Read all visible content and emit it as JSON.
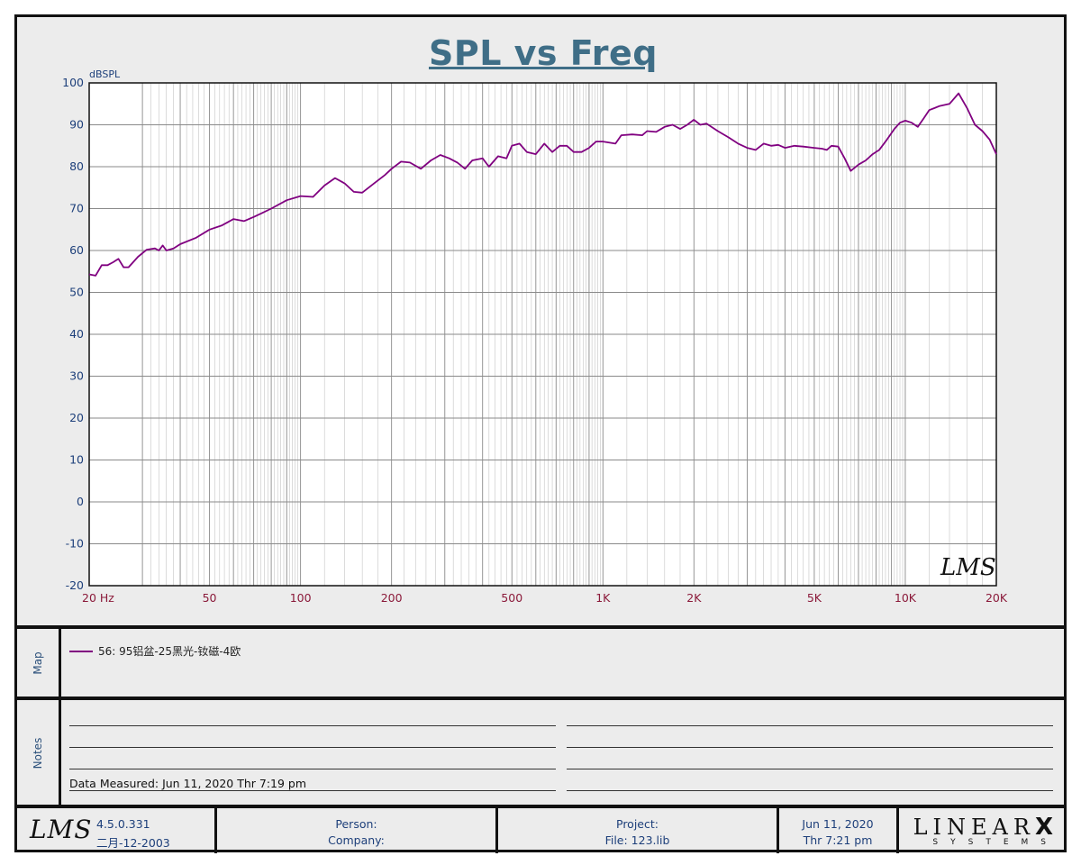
{
  "header": {
    "title": "SPL vs Freq"
  },
  "chart_data": {
    "type": "line",
    "title": "SPL vs Freq",
    "ylabel": "dBSPL",
    "xlabel": "",
    "x_scale": "log",
    "xlim": [
      20,
      20000
    ],
    "ylim": [
      -20,
      100
    ],
    "grid": true,
    "x_tick_labels": [
      {
        "value": 20,
        "label": "20  Hz"
      },
      {
        "value": 50,
        "label": "50"
      },
      {
        "value": 100,
        "label": "100"
      },
      {
        "value": 200,
        "label": "200"
      },
      {
        "value": 500,
        "label": "500"
      },
      {
        "value": 1000,
        "label": "1K"
      },
      {
        "value": 2000,
        "label": "2K"
      },
      {
        "value": 5000,
        "label": "5K"
      },
      {
        "value": 10000,
        "label": "10K"
      },
      {
        "value": 20000,
        "label": "20K"
      }
    ],
    "y_ticks": [
      100,
      90,
      80,
      70,
      60,
      50,
      40,
      30,
      20,
      10,
      0,
      -10,
      -20
    ],
    "series": [
      {
        "name": "56: 95铝盆-25黑光-钕磁-4欧",
        "color": "#800080",
        "points": [
          [
            20,
            54.3
          ],
          [
            21,
            54.0
          ],
          [
            22,
            56.5
          ],
          [
            23,
            56.5
          ],
          [
            24,
            57.2
          ],
          [
            25,
            58.0
          ],
          [
            26,
            56.0
          ],
          [
            27,
            56.0
          ],
          [
            29,
            58.5
          ],
          [
            31,
            60.2
          ],
          [
            33,
            60.5
          ],
          [
            34,
            60.0
          ],
          [
            35,
            61.2
          ],
          [
            36,
            60.0
          ],
          [
            38,
            60.5
          ],
          [
            40,
            61.5
          ],
          [
            45,
            63.0
          ],
          [
            50,
            65.0
          ],
          [
            55,
            66.0
          ],
          [
            60,
            67.5
          ],
          [
            65,
            67.0
          ],
          [
            70,
            68.0
          ],
          [
            75,
            69.0
          ],
          [
            80,
            70.0
          ],
          [
            90,
            72.0
          ],
          [
            100,
            73.0
          ],
          [
            110,
            72.8
          ],
          [
            120,
            75.5
          ],
          [
            130,
            77.3
          ],
          [
            140,
            76.0
          ],
          [
            150,
            74.0
          ],
          [
            160,
            73.8
          ],
          [
            175,
            76.0
          ],
          [
            190,
            78.0
          ],
          [
            200,
            79.5
          ],
          [
            215,
            81.2
          ],
          [
            230,
            81.0
          ],
          [
            250,
            79.5
          ],
          [
            270,
            81.5
          ],
          [
            290,
            82.8
          ],
          [
            310,
            82.0
          ],
          [
            330,
            81.0
          ],
          [
            350,
            79.5
          ],
          [
            370,
            81.5
          ],
          [
            400,
            82.0
          ],
          [
            420,
            80.0
          ],
          [
            450,
            82.5
          ],
          [
            480,
            82.0
          ],
          [
            500,
            85.0
          ],
          [
            530,
            85.5
          ],
          [
            560,
            83.5
          ],
          [
            600,
            83.0
          ],
          [
            640,
            85.5
          ],
          [
            680,
            83.5
          ],
          [
            720,
            85.0
          ],
          [
            760,
            85.0
          ],
          [
            800,
            83.5
          ],
          [
            850,
            83.5
          ],
          [
            900,
            84.5
          ],
          [
            950,
            86.0
          ],
          [
            1000,
            86.0
          ],
          [
            1100,
            85.5
          ],
          [
            1150,
            87.5
          ],
          [
            1250,
            87.7
          ],
          [
            1350,
            87.5
          ],
          [
            1400,
            88.5
          ],
          [
            1500,
            88.3
          ],
          [
            1600,
            89.5
          ],
          [
            1700,
            90.0
          ],
          [
            1800,
            89.0
          ],
          [
            1900,
            90.0
          ],
          [
            2000,
            91.2
          ],
          [
            2100,
            90.0
          ],
          [
            2200,
            90.3
          ],
          [
            2400,
            88.5
          ],
          [
            2600,
            87.0
          ],
          [
            2800,
            85.5
          ],
          [
            3000,
            84.5
          ],
          [
            3200,
            84.0
          ],
          [
            3400,
            85.5
          ],
          [
            3600,
            85.0
          ],
          [
            3800,
            85.2
          ],
          [
            4000,
            84.5
          ],
          [
            4300,
            85.0
          ],
          [
            4600,
            84.8
          ],
          [
            5000,
            84.5
          ],
          [
            5300,
            84.3
          ],
          [
            5500,
            84.0
          ],
          [
            5700,
            85.0
          ],
          [
            6000,
            84.8
          ],
          [
            6300,
            82.0
          ],
          [
            6600,
            79.0
          ],
          [
            7000,
            80.5
          ],
          [
            7400,
            81.5
          ],
          [
            7800,
            83.0
          ],
          [
            8200,
            84.0
          ],
          [
            8700,
            86.5
          ],
          [
            9200,
            89.0
          ],
          [
            9600,
            90.5
          ],
          [
            10000,
            91.0
          ],
          [
            10500,
            90.5
          ],
          [
            11000,
            89.5
          ],
          [
            11500,
            91.5
          ],
          [
            12000,
            93.5
          ],
          [
            12500,
            94.0
          ],
          [
            13000,
            94.5
          ],
          [
            14000,
            95.0
          ],
          [
            15000,
            97.5
          ],
          [
            16000,
            94.0
          ],
          [
            17000,
            90.0
          ],
          [
            18000,
            88.5
          ],
          [
            19000,
            86.5
          ],
          [
            20000,
            83.0
          ]
        ]
      }
    ]
  },
  "map": {
    "label": "Map"
  },
  "notes": {
    "label": "Notes",
    "data_measured": "Data Measured: Jun 11, 2020  Thr  7:19 pm"
  },
  "footer": {
    "logo": "LMS",
    "version": "4.5.0.331",
    "build_date": "二月-12-2003",
    "person_label": "Person:",
    "company_label": "Company:",
    "project_label": "Project:",
    "file_label": "File: 123.lib",
    "date": "Jun 11, 2020",
    "time": "Thr  7:21 pm",
    "brand_main": "LINEAR",
    "brand_x": "X",
    "brand_sub": "SYSTEMS"
  },
  "watermark": "LMS"
}
